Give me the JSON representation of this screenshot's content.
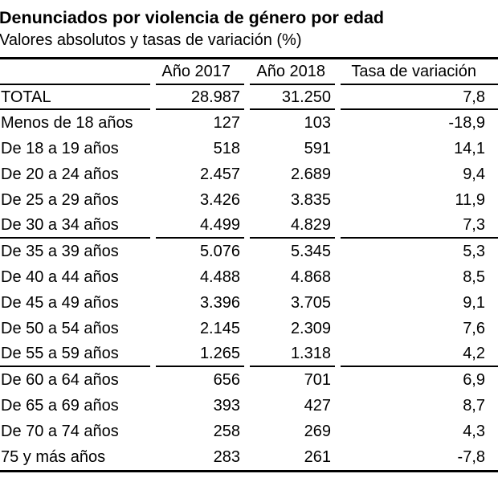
{
  "header": {
    "title": "Denunciados por violencia de género por edad",
    "subtitle": "Valores absolutos y tasas de variación (%)"
  },
  "table": {
    "stub_header": "",
    "columns": [
      "Año 2017",
      "Año 2018",
      "Tasa de variación"
    ],
    "rows": [
      {
        "label": "TOTAL",
        "y2017": "28.987",
        "y2018": "31.250",
        "rate": "7,8",
        "total": true,
        "rule_after": true
      },
      {
        "label": "Menos de 18 años",
        "y2017": "127",
        "y2018": "103",
        "rate": "-18,9",
        "total": false,
        "rule_after": false
      },
      {
        "label": "De 18 a 19 años",
        "y2017": "518",
        "y2018": "591",
        "rate": "14,1",
        "total": false,
        "rule_after": false
      },
      {
        "label": "De 20 a 24 años",
        "y2017": "2.457",
        "y2018": "2.689",
        "rate": "9,4",
        "total": false,
        "rule_after": false
      },
      {
        "label": "De 25 a 29 años",
        "y2017": "3.426",
        "y2018": "3.835",
        "rate": "11,9",
        "total": false,
        "rule_after": false
      },
      {
        "label": "De 30 a 34 años",
        "y2017": "4.499",
        "y2018": "4.829",
        "rate": "7,3",
        "total": false,
        "rule_after": true
      },
      {
        "label": "De 35 a 39 años",
        "y2017": "5.076",
        "y2018": "5.345",
        "rate": "5,3",
        "total": false,
        "rule_after": false
      },
      {
        "label": "De 40 a 44 años",
        "y2017": "4.488",
        "y2018": "4.868",
        "rate": "8,5",
        "total": false,
        "rule_after": false
      },
      {
        "label": "De 45 a 49 años",
        "y2017": "3.396",
        "y2018": "3.705",
        "rate": "9,1",
        "total": false,
        "rule_after": false
      },
      {
        "label": "De 50 a 54 años",
        "y2017": "2.145",
        "y2018": "2.309",
        "rate": "7,6",
        "total": false,
        "rule_after": false
      },
      {
        "label": "De 55 a 59 años",
        "y2017": "1.265",
        "y2018": "1.318",
        "rate": "4,2",
        "total": false,
        "rule_after": true
      },
      {
        "label": "De 60 a 64 años",
        "y2017": "656",
        "y2018": "701",
        "rate": "6,9",
        "total": false,
        "rule_after": false
      },
      {
        "label": "De 65 a 69 años",
        "y2017": "393",
        "y2018": "427",
        "rate": "8,7",
        "total": false,
        "rule_after": false
      },
      {
        "label": "De 70 a 74 años",
        "y2017": "258",
        "y2018": "269",
        "rate": "4,3",
        "total": false,
        "rule_after": false
      },
      {
        "label": "75 y más años",
        "y2017": "283",
        "y2018": "261",
        "rate": "-7,8",
        "total": false,
        "rule_after": false
      }
    ]
  },
  "chart_data": {
    "type": "table",
    "title": "Denunciados por violencia de género por edad",
    "subtitle": "Valores absolutos y tasas de variación (%)",
    "columns": [
      "Año 2017",
      "Año 2018",
      "Tasa de variación"
    ],
    "categories": [
      "TOTAL",
      "Menos de 18 años",
      "De 18 a 19 años",
      "De 20 a 24 años",
      "De 25 a 29 años",
      "De 30 a 34 años",
      "De 35 a 39 años",
      "De 40 a 44 años",
      "De 45 a 49 años",
      "De 50 a 54 años",
      "De 55 a 59 años",
      "De 60 a 64 años",
      "De 65 a 69 años",
      "De 70 a 74 años",
      "75 y más años"
    ],
    "series": [
      {
        "name": "Año 2017",
        "values": [
          28987,
          127,
          518,
          2457,
          3426,
          4499,
          5076,
          4488,
          3396,
          2145,
          1265,
          656,
          393,
          258,
          283
        ]
      },
      {
        "name": "Año 2018",
        "values": [
          31250,
          103,
          591,
          2689,
          3835,
          4829,
          5345,
          4868,
          3705,
          2309,
          1318,
          701,
          427,
          269,
          261
        ]
      },
      {
        "name": "Tasa de variación (%)",
        "values": [
          7.8,
          -18.9,
          14.1,
          9.4,
          11.9,
          7.3,
          5.3,
          8.5,
          9.1,
          7.6,
          4.2,
          6.9,
          8.7,
          4.3,
          -7.8
        ]
      }
    ]
  },
  "colors": {
    "text": "#000000",
    "background": "#ffffff",
    "rule": "#000000"
  }
}
